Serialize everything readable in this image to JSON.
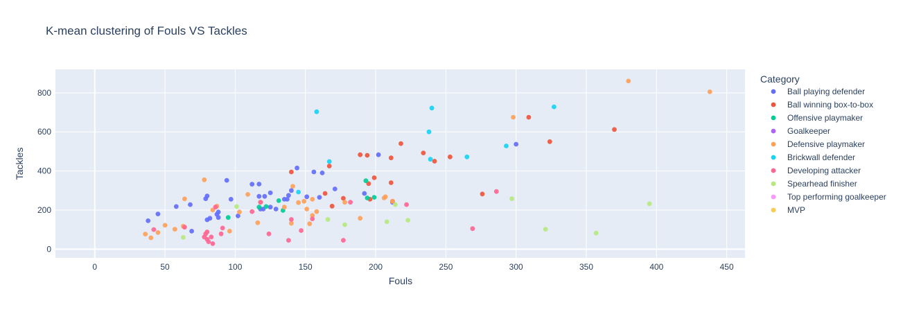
{
  "chart_data": {
    "type": "scatter",
    "title": "K-mean clustering of Fouls VS Tackles",
    "xlabel": "Fouls",
    "ylabel": "Tackles",
    "xlim": [
      -28,
      463
    ],
    "ylim": [
      -45,
      920
    ],
    "xticks": [
      0,
      50,
      100,
      150,
      200,
      250,
      300,
      350,
      400,
      450
    ],
    "yticks": [
      0,
      200,
      400,
      600,
      800
    ],
    "grid": true,
    "legend_title": "Category",
    "legend_position": "right",
    "series": [
      {
        "name": "Ball playing defender",
        "color": "#636efa",
        "points": [
          [
            38,
            145
          ],
          [
            45,
            180
          ],
          [
            58,
            218
          ],
          [
            68,
            228
          ],
          [
            69,
            92
          ],
          [
            79,
            258
          ],
          [
            80,
            272
          ],
          [
            80,
            150
          ],
          [
            82,
            158
          ],
          [
            87,
            178
          ],
          [
            88,
            162
          ],
          [
            88,
            190
          ],
          [
            94,
            352
          ],
          [
            97,
            255
          ],
          [
            102,
            170
          ],
          [
            112,
            332
          ],
          [
            117,
            333
          ],
          [
            117,
            270
          ],
          [
            118,
            205
          ],
          [
            120,
            205
          ],
          [
            121,
            270
          ],
          [
            125,
            288
          ],
          [
            125,
            215
          ],
          [
            129,
            205
          ],
          [
            135,
            255
          ],
          [
            137,
            255
          ],
          [
            138,
            275
          ],
          [
            140,
            300
          ],
          [
            144,
            415
          ],
          [
            151,
            268
          ],
          [
            156,
            395
          ],
          [
            160,
            265
          ],
          [
            162,
            390
          ],
          [
            171,
            308
          ],
          [
            192,
            285
          ],
          [
            202,
            483
          ],
          [
            212,
            240
          ],
          [
            300,
            537
          ]
        ]
      },
      {
        "name": "Ball winning box-to-box",
        "color": "#ef553b",
        "points": [
          [
            140,
            395
          ],
          [
            164,
            285
          ],
          [
            167,
            425
          ],
          [
            169,
            220
          ],
          [
            177,
            260
          ],
          [
            189,
            483
          ],
          [
            194,
            480
          ],
          [
            195,
            335
          ],
          [
            196,
            255
          ],
          [
            199,
            365
          ],
          [
            211,
            467
          ],
          [
            211,
            340
          ],
          [
            212,
            245
          ],
          [
            218,
            540
          ],
          [
            234,
            492
          ],
          [
            242,
            450
          ],
          [
            253,
            472
          ],
          [
            276,
            282
          ],
          [
            309,
            675
          ],
          [
            324,
            550
          ],
          [
            370,
            612
          ]
        ]
      },
      {
        "name": "Offensive playmaker",
        "color": "#00cc96",
        "points": [
          [
            95,
            162
          ],
          [
            117,
            215
          ],
          [
            122,
            218
          ],
          [
            131,
            248
          ],
          [
            134,
            198
          ],
          [
            193,
            350
          ],
          [
            194,
            262
          ],
          [
            199,
            265
          ]
        ]
      },
      {
        "name": "Goalkeeper",
        "color": "#ab63fa",
        "points": []
      },
      {
        "name": "Defensive playmaker",
        "color": "#ffa15a",
        "points": [
          [
            36,
            77
          ],
          [
            40,
            58
          ],
          [
            45,
            85
          ],
          [
            50,
            122
          ],
          [
            57,
            102
          ],
          [
            63,
            117
          ],
          [
            64,
            257
          ],
          [
            78,
            355
          ],
          [
            84,
            200
          ],
          [
            87,
            220
          ],
          [
            96,
            92
          ],
          [
            103,
            190
          ],
          [
            109,
            280
          ],
          [
            116,
            135
          ],
          [
            118,
            240
          ],
          [
            135,
            215
          ],
          [
            140,
            132
          ],
          [
            141,
            322
          ],
          [
            145,
            238
          ],
          [
            149,
            245
          ],
          [
            151,
            205
          ],
          [
            153,
            130
          ],
          [
            155,
            255
          ],
          [
            155,
            172
          ],
          [
            158,
            192
          ],
          [
            178,
            240
          ],
          [
            189,
            158
          ],
          [
            206,
            262
          ],
          [
            207,
            268
          ],
          [
            212,
            245
          ],
          [
            298,
            675
          ],
          [
            380,
            860
          ],
          [
            438,
            805
          ]
        ]
      },
      {
        "name": "Brickwall defender",
        "color": "#19d3f3",
        "points": [
          [
            145,
            292
          ],
          [
            158,
            703
          ],
          [
            167,
            448
          ],
          [
            238,
            600
          ],
          [
            239,
            460
          ],
          [
            240,
            722
          ],
          [
            265,
            472
          ],
          [
            293,
            528
          ],
          [
            327,
            728
          ]
        ]
      },
      {
        "name": "Developing attacker",
        "color": "#ff6692",
        "points": [
          [
            42,
            100
          ],
          [
            64,
            112
          ],
          [
            78,
            62
          ],
          [
            79,
            78
          ],
          [
            80,
            50
          ],
          [
            80,
            88
          ],
          [
            81,
            38
          ],
          [
            83,
            62
          ],
          [
            84,
            28
          ],
          [
            86,
            215
          ],
          [
            90,
            78
          ],
          [
            91,
            108
          ],
          [
            112,
            192
          ],
          [
            118,
            240
          ],
          [
            124,
            78
          ],
          [
            138,
            45
          ],
          [
            140,
            152
          ],
          [
            147,
            95
          ],
          [
            155,
            155
          ],
          [
            177,
            45
          ],
          [
            182,
            240
          ],
          [
            222,
            228
          ],
          [
            269,
            105
          ],
          [
            286,
            295
          ]
        ]
      },
      {
        "name": "Spearhead finisher",
        "color": "#b6e880",
        "points": [
          [
            63,
            60
          ],
          [
            101,
            218
          ],
          [
            166,
            152
          ],
          [
            178,
            125
          ],
          [
            208,
            140
          ],
          [
            214,
            228
          ],
          [
            223,
            148
          ],
          [
            297,
            258
          ],
          [
            321,
            102
          ],
          [
            357,
            82
          ],
          [
            395,
            232
          ]
        ]
      },
      {
        "name": "Top performing goalkeeper",
        "color": "#ff97ff",
        "points": []
      },
      {
        "name": "MVP",
        "color": "#fecb52",
        "points": []
      }
    ]
  }
}
